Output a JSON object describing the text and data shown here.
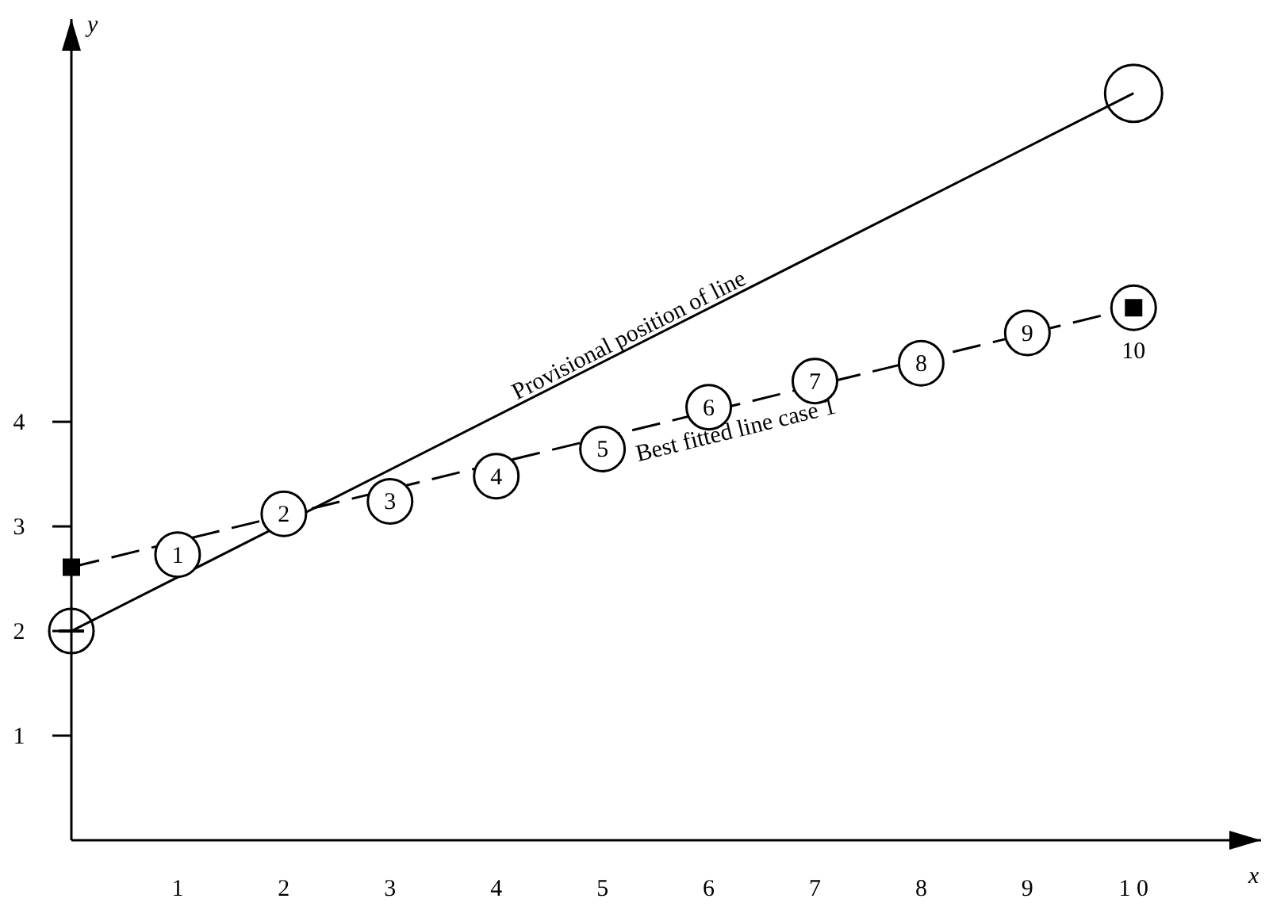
{
  "chart_data": {
    "type": "line",
    "xlabel": "x",
    "ylabel": "y",
    "xlim": [
      0,
      11.2
    ],
    "ylim": [
      0,
      7.85
    ],
    "xticks": [
      1,
      2,
      3,
      4,
      5,
      6,
      7,
      8,
      9,
      {
        "value": 10,
        "label": "1 0"
      }
    ],
    "yticks": [
      1,
      2,
      3,
      4
    ],
    "grid": false,
    "legend": false,
    "series": [
      {
        "name": "Provisional position of line",
        "color": "#000000",
        "line_style": "solid",
        "marker": "circle",
        "x": [
          0,
          10
        ],
        "values": [
          2,
          7.14
        ]
      },
      {
        "name": "Best fitted line case 1",
        "color": "#000000",
        "line_style": "dashed",
        "marker": "square",
        "x": [
          0,
          10
        ],
        "values": [
          2.61,
          5.09
        ]
      },
      {
        "type": "scatter",
        "color": "#000000",
        "marker": "circle",
        "x": [
          1,
          2,
          3,
          4,
          5,
          6,
          7,
          8,
          9,
          10
        ],
        "values": [
          2.73,
          3.12,
          3.24,
          3.48,
          3.74,
          4.14,
          4.39,
          4.56,
          4.85,
          5.09
        ]
      }
    ],
    "annotations": [
      {
        "text": "1",
        "x": 1,
        "y": 2.73
      },
      {
        "text": "2",
        "x": 2,
        "y": 3.12
      },
      {
        "text": "3",
        "x": 3,
        "y": 3.24
      },
      {
        "text": "4",
        "x": 4,
        "y": 3.48
      },
      {
        "text": "5",
        "x": 5,
        "y": 3.74
      },
      {
        "text": "6",
        "x": 6,
        "y": 4.14
      },
      {
        "text": "7",
        "x": 7,
        "y": 4.39
      },
      {
        "text": "8",
        "x": 8,
        "y": 4.56
      },
      {
        "text": "9",
        "x": 9,
        "y": 4.85
      },
      {
        "text": "10",
        "x": 10,
        "y": 5.09
      }
    ]
  }
}
